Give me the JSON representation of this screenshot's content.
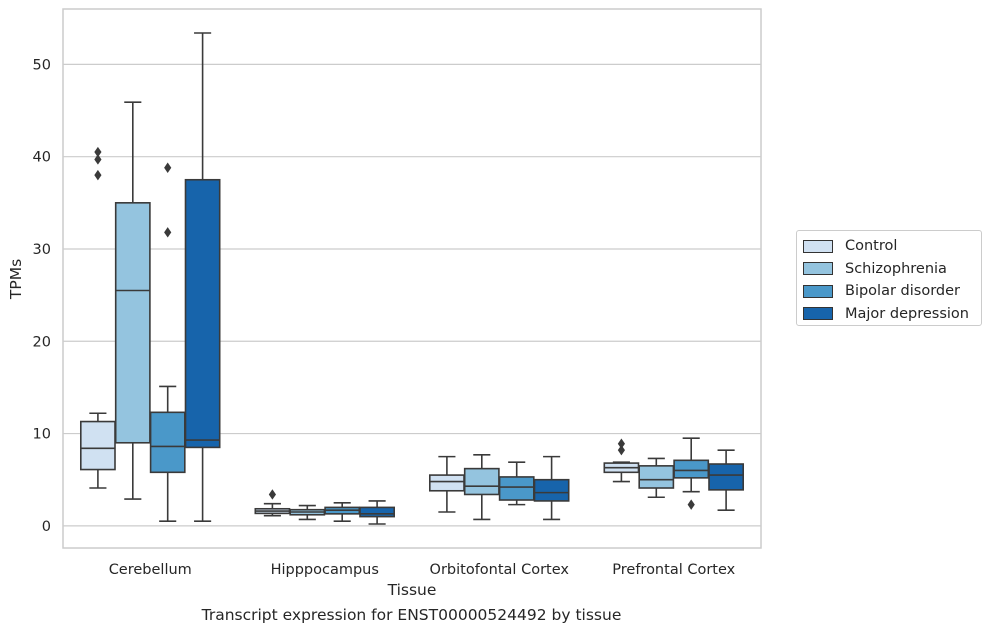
{
  "chart_data": {
    "type": "box",
    "title": "",
    "caption": "Transcript expression for ENST00000524492 by tissue",
    "xlabel": "Tissue",
    "ylabel": "TPMs",
    "ylim": [
      -2.4,
      56
    ],
    "yticks": [
      0,
      10,
      20,
      30,
      40,
      50
    ],
    "grid": "horizontal",
    "legend_position": "right",
    "categories": [
      "Cerebellum",
      "Hipppocampus",
      "Orbitofontal Cortex",
      "Prefrontal Cortex"
    ],
    "series": [
      {
        "name": "Control",
        "color": "#d0e1f2",
        "boxes": [
          {
            "whisker_low": 4.1,
            "q1": 6.1,
            "median": 8.4,
            "q3": 11.3,
            "whisker_high": 12.2,
            "outliers": [
              38.0,
              39.7,
              40.5
            ]
          },
          {
            "whisker_low": 1.1,
            "q1": 1.35,
            "median": 1.6,
            "q3": 1.85,
            "whisker_high": 2.4,
            "outliers": [
              3.4
            ]
          },
          {
            "whisker_low": 1.5,
            "q1": 3.8,
            "median": 4.8,
            "q3": 5.5,
            "whisker_high": 7.5,
            "outliers": []
          },
          {
            "whisker_low": 4.8,
            "q1": 5.8,
            "median": 6.3,
            "q3": 6.8,
            "whisker_high": 6.9,
            "outliers": [
              8.2,
              8.9
            ]
          }
        ]
      },
      {
        "name": "Schizophrenia",
        "color": "#94c4df",
        "boxes": [
          {
            "whisker_low": 2.9,
            "q1": 9.0,
            "median": 25.5,
            "q3": 35.0,
            "whisker_high": 45.9,
            "outliers": []
          },
          {
            "whisker_low": 0.7,
            "q1": 1.2,
            "median": 1.5,
            "q3": 1.75,
            "whisker_high": 2.2,
            "outliers": []
          },
          {
            "whisker_low": 0.7,
            "q1": 3.4,
            "median": 4.3,
            "q3": 6.2,
            "whisker_high": 7.7,
            "outliers": []
          },
          {
            "whisker_low": 3.1,
            "q1": 4.1,
            "median": 5.0,
            "q3": 6.5,
            "whisker_high": 7.3,
            "outliers": []
          }
        ]
      },
      {
        "name": "Bipolar disorder",
        "color": "#4a98c9",
        "boxes": [
          {
            "whisker_low": 0.5,
            "q1": 5.8,
            "median": 8.6,
            "q3": 12.3,
            "whisker_high": 15.1,
            "outliers": [
              31.8,
              38.8
            ]
          },
          {
            "whisker_low": 0.5,
            "q1": 1.3,
            "median": 1.7,
            "q3": 2.0,
            "whisker_high": 2.5,
            "outliers": []
          },
          {
            "whisker_low": 2.3,
            "q1": 2.8,
            "median": 4.2,
            "q3": 5.3,
            "whisker_high": 6.9,
            "outliers": []
          },
          {
            "whisker_low": 3.7,
            "q1": 5.2,
            "median": 6.0,
            "q3": 7.1,
            "whisker_high": 9.5,
            "outliers": [
              2.3
            ]
          }
        ]
      },
      {
        "name": "Major depression",
        "color": "#1764ab",
        "boxes": [
          {
            "whisker_low": 0.5,
            "q1": 8.5,
            "median": 9.3,
            "q3": 37.5,
            "whisker_high": 53.4,
            "outliers": []
          },
          {
            "whisker_low": 0.2,
            "q1": 1.0,
            "median": 1.3,
            "q3": 2.0,
            "whisker_high": 2.7,
            "outliers": []
          },
          {
            "whisker_low": 0.7,
            "q1": 2.7,
            "median": 3.6,
            "q3": 5.0,
            "whisker_high": 7.5,
            "outliers": []
          },
          {
            "whisker_low": 1.7,
            "q1": 3.9,
            "median": 5.5,
            "q3": 6.7,
            "whisker_high": 8.2,
            "outliers": []
          }
        ]
      }
    ]
  }
}
